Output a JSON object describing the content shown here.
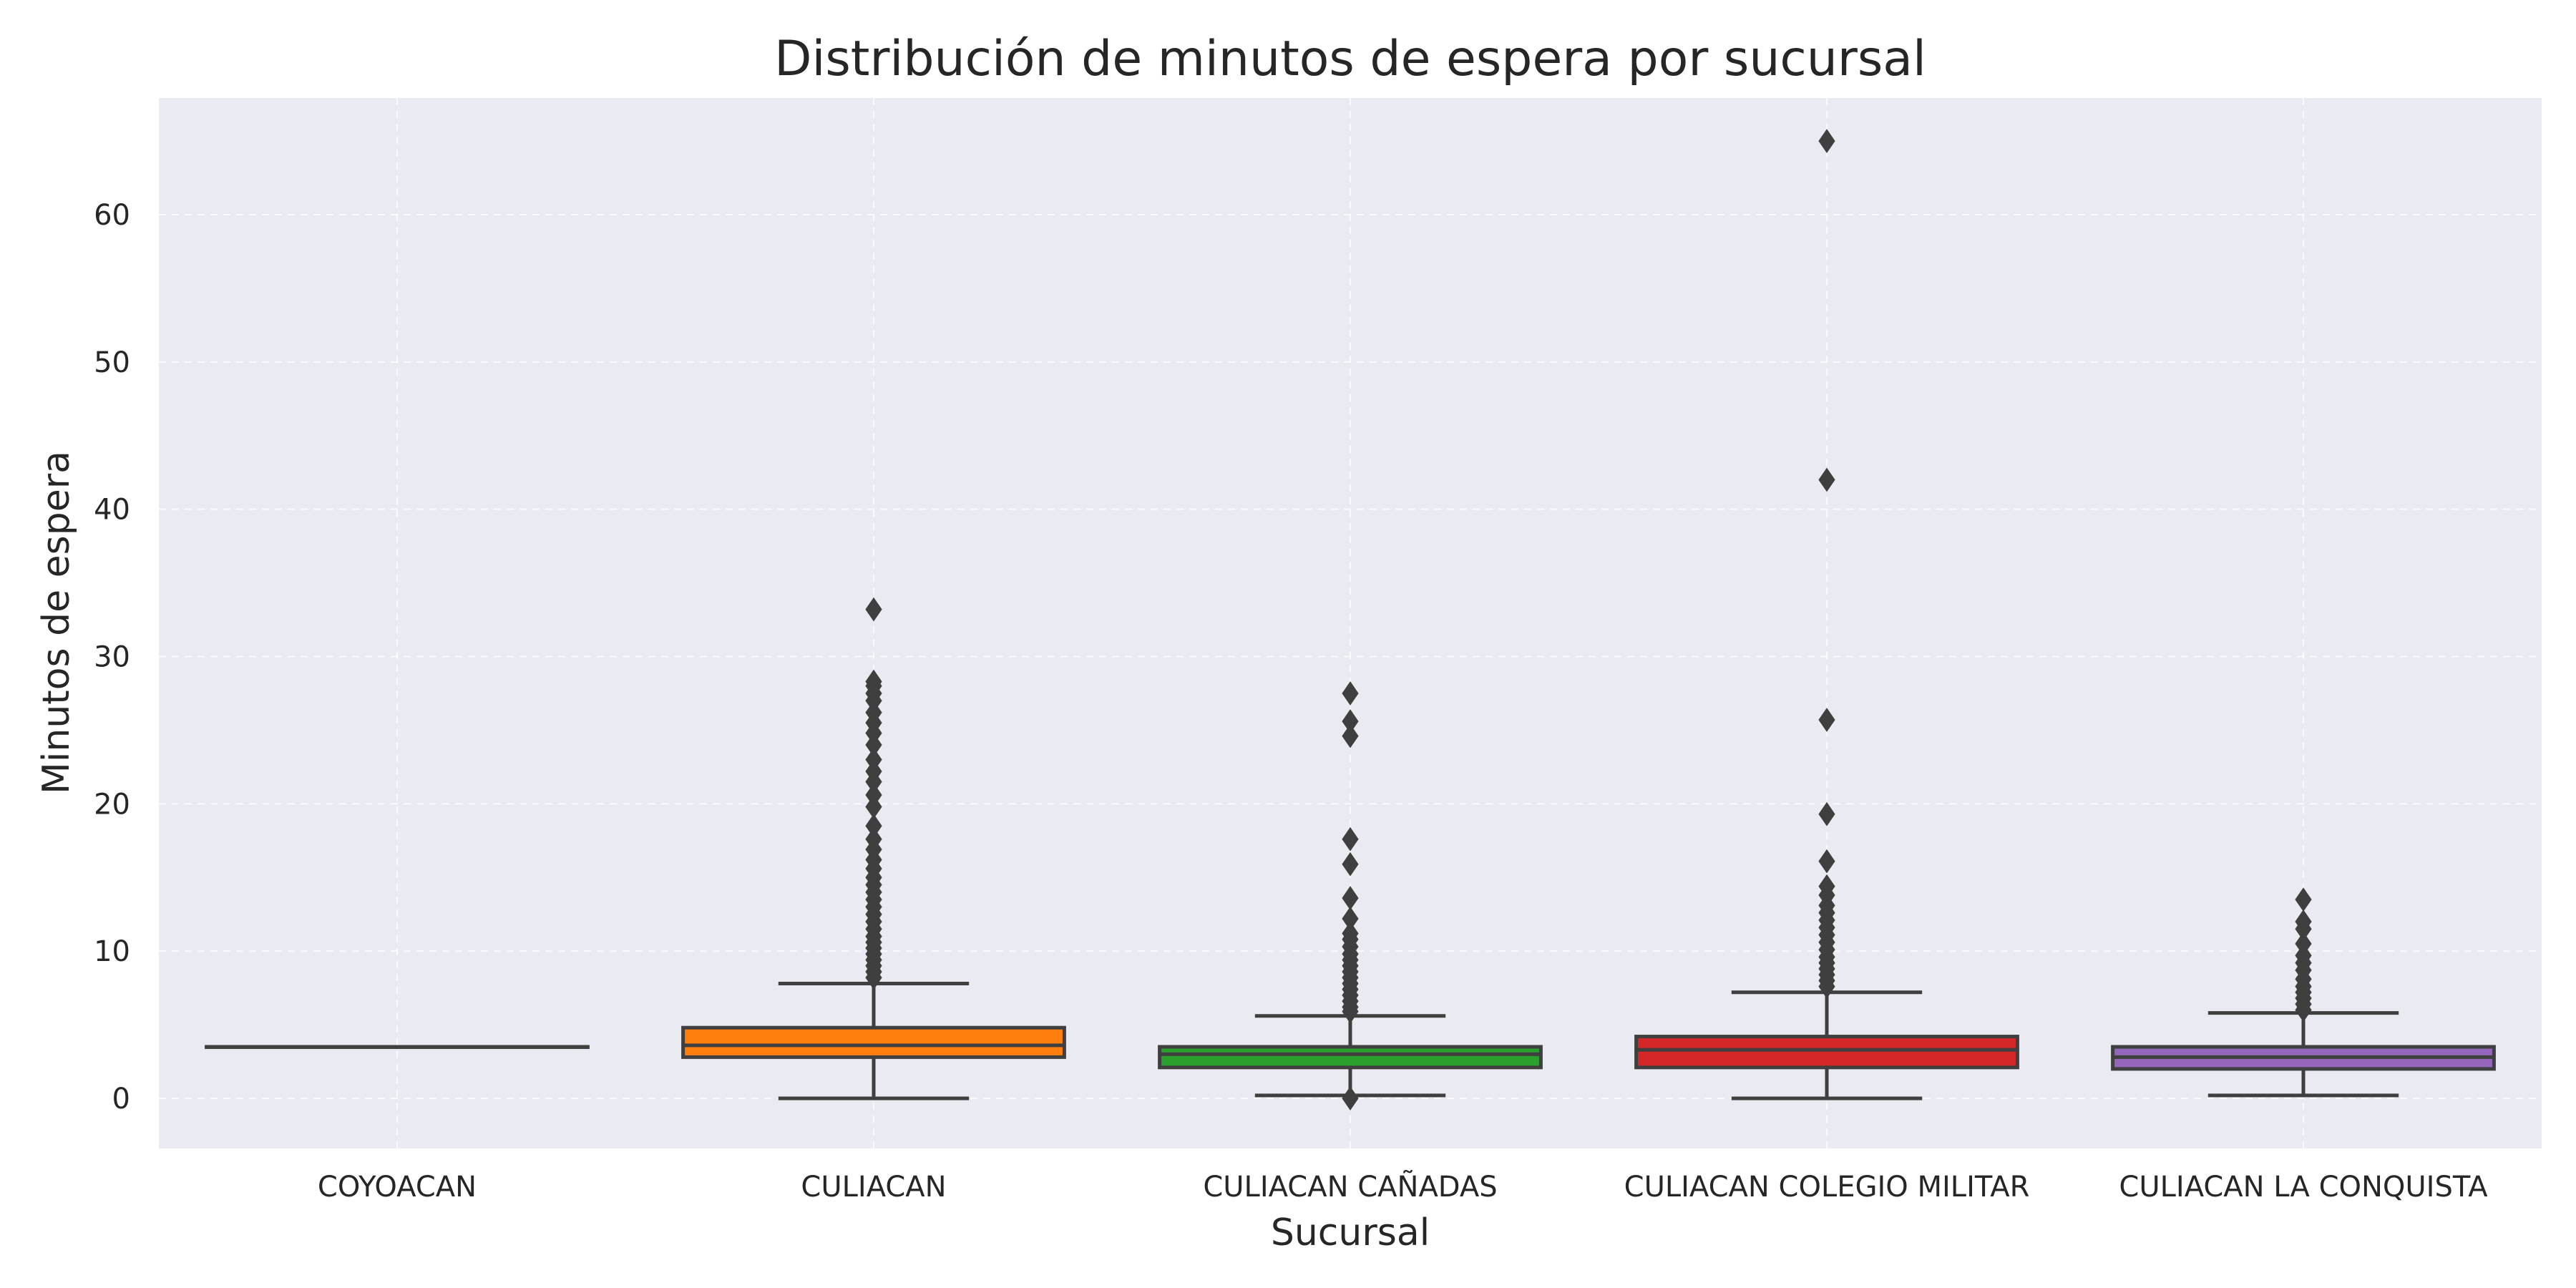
{
  "chart_data": {
    "type": "box",
    "title": "Distribución de minutos de espera por sucursal",
    "xlabel": "Sucursal",
    "ylabel": "Minutos de espera",
    "ylim": [
      -3,
      68
    ],
    "yticks": [
      0,
      10,
      20,
      30,
      40,
      50,
      60
    ],
    "grid": true,
    "colors": {
      "background": "#EAEAF2",
      "line": "#3F3F3F",
      "grid": "#FFFFFF"
    },
    "categories": [
      "COYOACAN",
      "CULIACAN",
      "CULIACAN CAÑADAS",
      "CULIACAN COLEGIO MILITAR",
      "CULIACAN LA CONQUISTA"
    ],
    "boxes": [
      {
        "category": "COYOACAN",
        "color": "#1F77B4",
        "whisker_low": 3.5,
        "q1": 3.5,
        "median": 3.5,
        "q3": 3.5,
        "whisker_high": 3.5,
        "fliers": []
      },
      {
        "category": "CULIACAN",
        "color": "#FF7F0E",
        "whisker_low": 0,
        "q1": 2.8,
        "median": 3.6,
        "q3": 4.8,
        "whisker_high": 7.8,
        "fliers": [
          33.2,
          28.3,
          28.0,
          27.5,
          27.0,
          26.2,
          25.5,
          24.8,
          24.0,
          23.0,
          22.2,
          21.5,
          20.6,
          19.8,
          18.5,
          17.6,
          16.9,
          16.2,
          15.6,
          15.0,
          14.5,
          14.0,
          13.5,
          13.0,
          12.5,
          12.0,
          11.5,
          11.0,
          10.6,
          10.2,
          9.8,
          9.4,
          9.0,
          8.6,
          8.2
        ]
      },
      {
        "category": "CULIACAN CAÑADAS",
        "color": "#2CA02C",
        "whisker_low": 0.2,
        "q1": 2.1,
        "median": 3.0,
        "q3": 3.5,
        "whisker_high": 5.6,
        "fliers": [
          27.5,
          25.6,
          24.6,
          17.6,
          15.9,
          13.6,
          12.2,
          11.2,
          10.8,
          10.3,
          9.8,
          9.4,
          9.0,
          8.6,
          8.2,
          7.8,
          7.4,
          7.0,
          6.6,
          6.2,
          5.9,
          0
        ]
      },
      {
        "category": "CULIACAN COLEGIO MILITAR",
        "color": "#D62728",
        "whisker_low": 0,
        "q1": 2.1,
        "median": 3.3,
        "q3": 4.2,
        "whisker_high": 7.2,
        "fliers": [
          65.0,
          42.0,
          25.7,
          19.3,
          16.1,
          14.4,
          13.8,
          13.1,
          12.6,
          12.1,
          11.6,
          11.1,
          10.6,
          10.1,
          9.6,
          9.2,
          8.8,
          8.4,
          8.0,
          7.6
        ]
      },
      {
        "category": "CULIACAN LA CONQUISTA",
        "color": "#9467BD",
        "whisker_low": 0.2,
        "q1": 2.0,
        "median": 2.8,
        "q3": 3.5,
        "whisker_high": 5.8,
        "fliers": [
          13.5,
          12.0,
          11.5,
          10.5,
          9.7,
          9.2,
          8.7,
          8.1,
          7.6,
          7.2,
          6.8,
          6.4,
          6.0
        ]
      }
    ]
  }
}
